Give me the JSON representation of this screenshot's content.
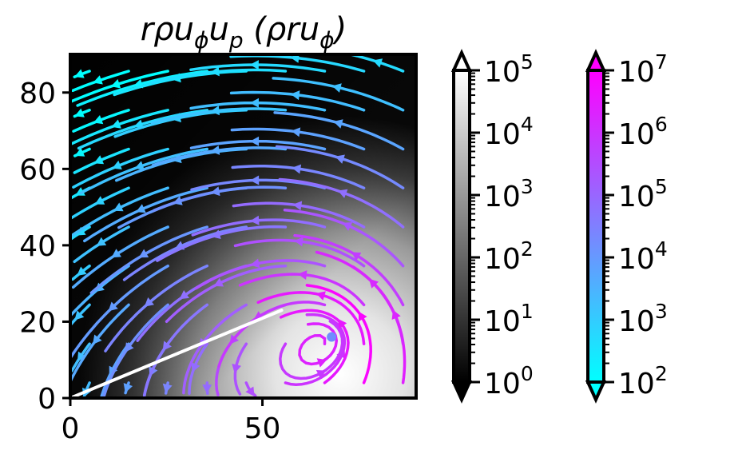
{
  "chart_data": {
    "type": "heatmap",
    "title": "rρu_φu_p (ρru_φ)",
    "title_parts": {
      "base": "rρu",
      "sub1": "ϕ",
      "mid": "u",
      "sub2": "p",
      "paren_open": " (ρru",
      "sub3": "ϕ",
      "paren_close": ")"
    },
    "xlabel": "",
    "ylabel": "",
    "xlim": [
      0,
      90
    ],
    "ylim": [
      0,
      90
    ],
    "x_ticks": [
      0,
      50
    ],
    "x_tick_labels": [
      "0",
      "50"
    ],
    "y_ticks": [
      0,
      20,
      40,
      60,
      80
    ],
    "y_tick_labels": [
      "0",
      "20",
      "40",
      "60",
      "80"
    ],
    "grid": false,
    "background_field": {
      "description_free": true,
      "colormap": "grayscale (black to white)",
      "scale": "log",
      "range": [
        1,
        100000
      ],
      "extend": "both"
    },
    "streamlines": {
      "colormap": "cyan to magenta (cool)",
      "scale": "log",
      "range": [
        100,
        10000000
      ],
      "extend": "both",
      "vortex_center": [
        68,
        16
      ]
    },
    "white_line": {
      "x": [
        0,
        55
      ],
      "y": [
        0,
        23
      ]
    },
    "colorbars": [
      {
        "name": "grayscale",
        "colors": [
          "#000000",
          "#ffffff"
        ],
        "ticks": [
          1,
          10,
          100,
          1000,
          10000,
          100000
        ],
        "tick_labels": [
          {
            "base": "10",
            "exp": "0"
          },
          {
            "base": "10",
            "exp": "1"
          },
          {
            "base": "10",
            "exp": "2"
          },
          {
            "base": "10",
            "exp": "3"
          },
          {
            "base": "10",
            "exp": "4"
          },
          {
            "base": "10",
            "exp": "5"
          }
        ]
      },
      {
        "name": "cool",
        "colors": [
          "#00ffff",
          "#ff00ff"
        ],
        "ticks": [
          100,
          1000,
          10000,
          100000,
          1000000,
          10000000
        ],
        "tick_labels": [
          {
            "base": "10",
            "exp": "2"
          },
          {
            "base": "10",
            "exp": "3"
          },
          {
            "base": "10",
            "exp": "4"
          },
          {
            "base": "10",
            "exp": "5"
          },
          {
            "base": "10",
            "exp": "6"
          },
          {
            "base": "10",
            "exp": "7"
          }
        ]
      }
    ]
  }
}
